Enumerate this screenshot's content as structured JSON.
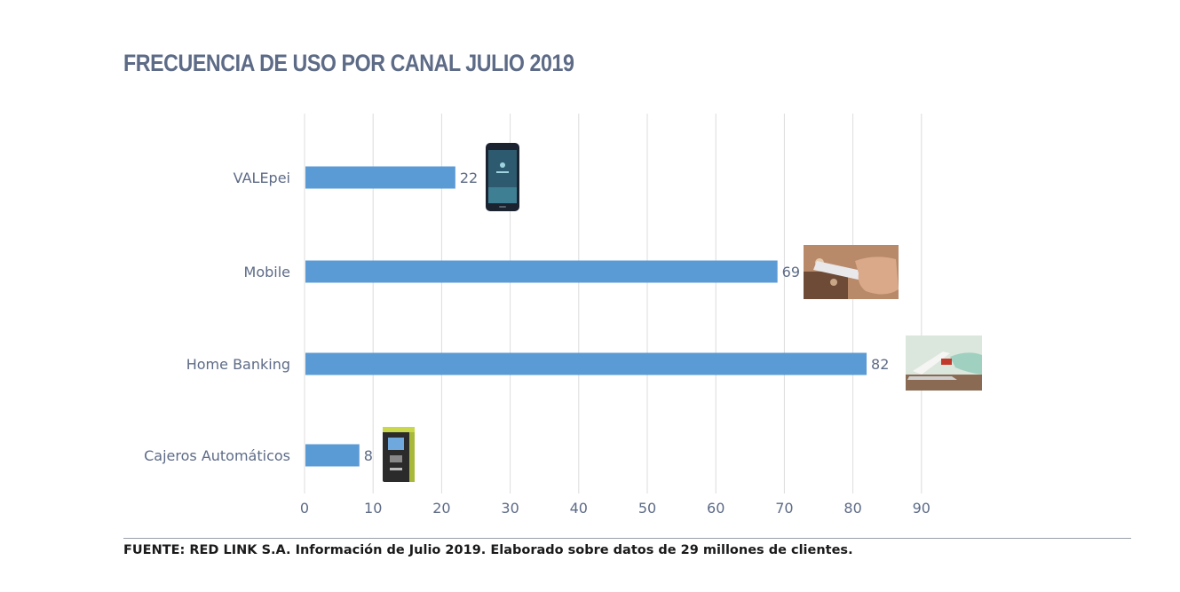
{
  "chart_data": {
    "type": "bar",
    "orientation": "horizontal",
    "title": "FRECUENCIA DE USO POR CANAL JULIO 2019",
    "categories": [
      "VALEpei",
      "Mobile",
      "Home Banking",
      "Cajeros Automáticos"
    ],
    "values": [
      22,
      69,
      82,
      8
    ],
    "xlim": [
      0,
      90
    ],
    "ticks": [
      0,
      10,
      20,
      30,
      40,
      50,
      60,
      70,
      80,
      90
    ],
    "grid": "vertical",
    "bar_color": "#5b9bd5",
    "category_icons": [
      "smartphone-photo",
      "hand-holding-phone-photo",
      "laptop-payment-photo",
      "atm-machine-photo"
    ]
  },
  "source_note": "FUENTE: RED LINK S.A. Información de Julio 2019. Elaborado sobre datos de 29 millones de clientes."
}
